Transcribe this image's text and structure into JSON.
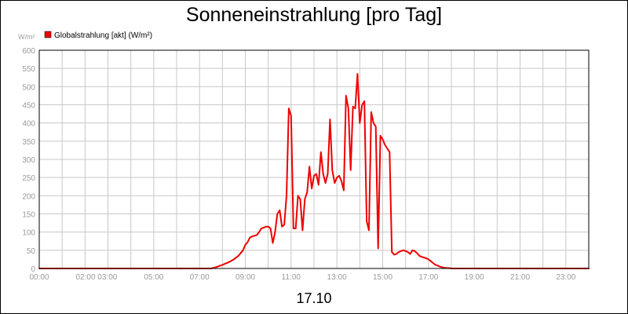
{
  "chart_data": {
    "type": "line",
    "title": "Sonneneinstrahlung [pro Tag]",
    "date_label": "17.10",
    "ylabel_unit": "W/m²",
    "ylim": [
      0,
      600
    ],
    "y_ticks": [
      "0",
      "50",
      "100",
      "150",
      "200",
      "250",
      "300",
      "350",
      "400",
      "450",
      "500",
      "550",
      "600"
    ],
    "xlim_hours": [
      0,
      24
    ],
    "x_tick_labels": [
      {
        "hour": 0,
        "label": "00:00"
      },
      {
        "hour": 2.5,
        "label": "02:00 03:00"
      },
      {
        "hour": 5,
        "label": "05:00"
      },
      {
        "hour": 7,
        "label": "07:00"
      },
      {
        "hour": 9,
        "label": "09:00"
      },
      {
        "hour": 11,
        "label": "11:00"
      },
      {
        "hour": 13,
        "label": "13:00"
      },
      {
        "hour": 15,
        "label": "15:00"
      },
      {
        "hour": 17,
        "label": "17:00"
      },
      {
        "hour": 19,
        "label": "19:00"
      },
      {
        "hour": 21,
        "label": "21:00"
      },
      {
        "hour": 23,
        "label": "23:00"
      }
    ],
    "grid": true,
    "legend_position": "top-left",
    "colors": {
      "series": "#ee0000",
      "grid": "#c8c8c8",
      "axis": "#000000",
      "tick_label": "#9a9a9a"
    },
    "series": [
      {
        "name": "Globalstrahlung [akt] (W/m²)",
        "x": [
          0,
          7.5,
          7.7,
          8.0,
          8.3,
          8.5,
          8.7,
          8.9,
          9.0,
          9.1,
          9.2,
          9.3,
          9.4,
          9.5,
          9.6,
          9.7,
          9.8,
          9.9,
          10.0,
          10.1,
          10.2,
          10.3,
          10.4,
          10.5,
          10.6,
          10.7,
          10.8,
          10.9,
          11.0,
          11.1,
          11.2,
          11.3,
          11.4,
          11.5,
          11.6,
          11.7,
          11.8,
          11.9,
          12.0,
          12.1,
          12.2,
          12.3,
          12.4,
          12.5,
          12.6,
          12.7,
          12.8,
          12.9,
          13.0,
          13.1,
          13.2,
          13.3,
          13.4,
          13.5,
          13.6,
          13.7,
          13.8,
          13.9,
          14.0,
          14.1,
          14.2,
          14.3,
          14.4,
          14.5,
          14.6,
          14.7,
          14.8,
          14.9,
          15.0,
          15.1,
          15.2,
          15.3,
          15.4,
          15.5,
          15.6,
          15.7,
          15.8,
          15.9,
          16.0,
          16.1,
          16.2,
          16.3,
          16.4,
          16.5,
          16.6,
          16.7,
          16.8,
          16.9,
          17.0,
          17.1,
          17.2,
          17.3,
          17.4,
          17.5,
          17.6,
          17.7,
          17.8,
          17.9,
          18.0,
          18.1,
          18.2,
          18.3,
          18.4,
          18.5,
          18.7,
          19.0,
          24
        ],
        "values": [
          0,
          0,
          3,
          10,
          18,
          25,
          35,
          50,
          65,
          72,
          85,
          88,
          90,
          92,
          100,
          110,
          112,
          115,
          115,
          110,
          70,
          100,
          150,
          160,
          115,
          120,
          200,
          440,
          420,
          110,
          110,
          200,
          190,
          105,
          190,
          210,
          280,
          220,
          255,
          260,
          230,
          320,
          260,
          235,
          260,
          410,
          270,
          235,
          250,
          255,
          240,
          215,
          475,
          440,
          270,
          445,
          440,
          535,
          400,
          450,
          460,
          130,
          105,
          430,
          400,
          390,
          55,
          365,
          355,
          340,
          330,
          320,
          45,
          38,
          40,
          45,
          48,
          50,
          48,
          45,
          40,
          50,
          48,
          42,
          35,
          32,
          30,
          28,
          25,
          20,
          15,
          10,
          8,
          5,
          3,
          2,
          1,
          1,
          0,
          0,
          0,
          0,
          0,
          0,
          0,
          0,
          0
        ]
      }
    ]
  }
}
